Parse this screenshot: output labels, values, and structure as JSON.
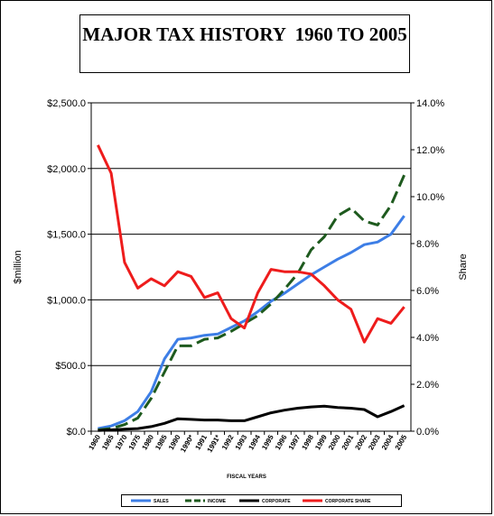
{
  "chart_data": {
    "type": "line",
    "title": "MAJOR TAX HISTORY  1960 TO 2005",
    "xlabel": "FISCAL YEARS",
    "ylabel": "$million",
    "y2label": "Share",
    "ylim": [
      0,
      2500
    ],
    "y2lim": [
      0,
      14
    ],
    "y_ticks": [
      "$0.0",
      "$500.0",
      "$1,000.0",
      "$1,500.0",
      "$2,000.0",
      "$2,500.0"
    ],
    "y2_ticks": [
      "0.0%",
      "2.0%",
      "4.0%",
      "6.0%",
      "8.0%",
      "10.0%",
      "12.0%",
      "14.0%"
    ],
    "categories": [
      "1960",
      "1965",
      "1970",
      "1975",
      "1980",
      "1985",
      "1990",
      "1990*",
      "1991",
      "1991*",
      "1992",
      "1993",
      "1994",
      "1995",
      "1996",
      "1997",
      "1998",
      "1999",
      "2000",
      "2001",
      "2002",
      "2003",
      "2004",
      "2005"
    ],
    "x_tick_labels": [
      "1960",
      "1965",
      "1970",
      "1975",
      "1980",
      "1985",
      "1990",
      "1990*",
      "1991",
      "1991*",
      "1992",
      "1993",
      "1994",
      "1995",
      "1996",
      "1997",
      "1998",
      "1999",
      "2000",
      "2001",
      "2002",
      "2003",
      "2004",
      "2005"
    ],
    "grid": "horizontal major gridlines",
    "legend_position": "bottom",
    "series": [
      {
        "name": "SALES",
        "axis": "left",
        "color": "#3d7ee6",
        "dash": "solid",
        "values": [
          20,
          40,
          80,
          150,
          300,
          550,
          700,
          710,
          730,
          740,
          790,
          840,
          910,
          990,
          1050,
          1120,
          1190,
          1250,
          1310,
          1360,
          1420,
          1440,
          1500,
          1640
        ]
      },
      {
        "name": "INCOME",
        "axis": "left",
        "color": "#1e5a1e",
        "dash": "dashed",
        "values": [
          10,
          20,
          50,
          100,
          250,
          450,
          650,
          650,
          700,
          710,
          760,
          820,
          880,
          970,
          1080,
          1200,
          1380,
          1480,
          1640,
          1700,
          1600,
          1570,
          1720,
          1950
        ]
      },
      {
        "name": "CORPORATE",
        "axis": "left",
        "color": "#000000",
        "dash": "solid",
        "values": [
          5,
          10,
          15,
          20,
          35,
          60,
          95,
          90,
          85,
          85,
          80,
          80,
          110,
          140,
          160,
          175,
          185,
          190,
          180,
          175,
          165,
          110,
          150,
          195
        ]
      },
      {
        "name": "CORPORATE SHARE",
        "axis": "right",
        "color": "#ee1c1c",
        "dash": "solid",
        "values": [
          12.2,
          11.0,
          7.2,
          6.1,
          6.5,
          6.2,
          6.8,
          6.6,
          5.7,
          5.9,
          4.8,
          4.4,
          5.9,
          6.9,
          6.8,
          6.8,
          6.7,
          6.2,
          5.6,
          5.2,
          3.8,
          4.8,
          4.6,
          5.3
        ]
      }
    ]
  }
}
